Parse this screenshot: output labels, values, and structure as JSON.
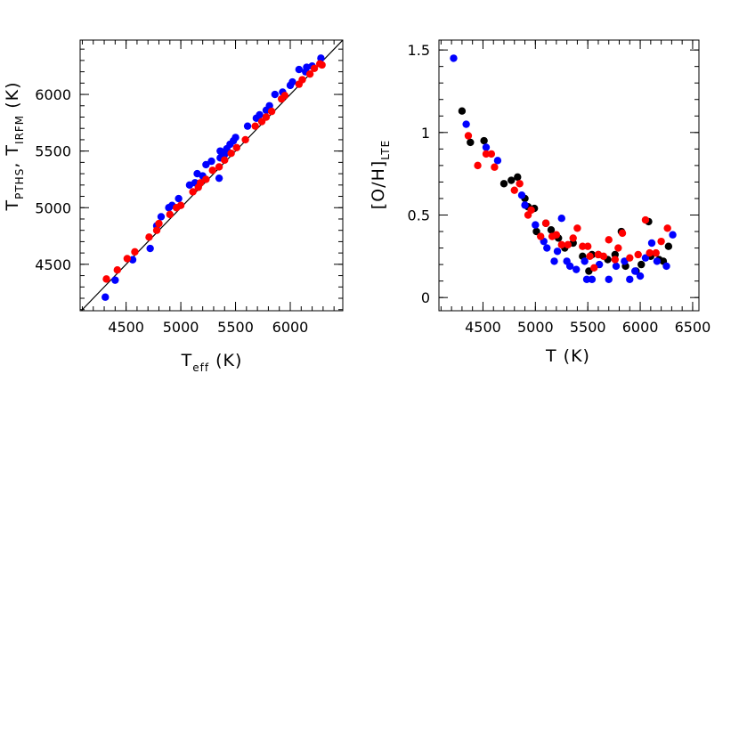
{
  "chart_data": [
    {
      "type": "scatter",
      "xlim": [
        4080,
        6480
      ],
      "ylim": [
        4090,
        6480
      ],
      "xticks": [
        4500,
        5000,
        5500,
        6000
      ],
      "yticks": [
        4500,
        5000,
        5500,
        6000
      ],
      "xtick_labels": [
        "4500",
        "5000",
        "5500",
        "6000"
      ],
      "ytick_labels": [
        "4500",
        "5000",
        "5500",
        "6000"
      ],
      "xlabel": {
        "main": "T",
        "sub": "eff",
        "unit": " (K)"
      },
      "ylabel": {
        "main1": "T",
        "sub1": "PTHS",
        "sep": ", ",
        "main2": "T",
        "sub2": "IRFM",
        "unit": "  (K)"
      },
      "grid": false,
      "reference_line": {
        "slope": 1,
        "intercept": 0,
        "color": "#000000"
      },
      "series": [
        {
          "color": "#0000ff",
          "points": [
            [
              4310,
              4210
            ],
            [
              4400,
              4360
            ],
            [
              4560,
              4540
            ],
            [
              4720,
              4640
            ],
            [
              4780,
              4840
            ],
            [
              4820,
              4920
            ],
            [
              4890,
              5000
            ],
            [
              4920,
              5020
            ],
            [
              4980,
              5080
            ],
            [
              5080,
              5200
            ],
            [
              5130,
              5220
            ],
            [
              5150,
              5300
            ],
            [
              5200,
              5280
            ],
            [
              5230,
              5380
            ],
            [
              5280,
              5410
            ],
            [
              5350,
              5260
            ],
            [
              5360,
              5440
            ],
            [
              5360,
              5500
            ],
            [
              5400,
              5470
            ],
            [
              5420,
              5520
            ],
            [
              5450,
              5560
            ],
            [
              5480,
              5590
            ],
            [
              5500,
              5620
            ],
            [
              5610,
              5720
            ],
            [
              5690,
              5790
            ],
            [
              5720,
              5820
            ],
            [
              5780,
              5860
            ],
            [
              5810,
              5900
            ],
            [
              5860,
              6000
            ],
            [
              5930,
              6020
            ],
            [
              6000,
              6080
            ],
            [
              6020,
              6110
            ],
            [
              6080,
              6220
            ],
            [
              6140,
              6200
            ],
            [
              6150,
              6240
            ],
            [
              6200,
              6250
            ],
            [
              6280,
              6320
            ]
          ]
        },
        {
          "color": "#ff0000",
          "points": [
            [
              4320,
              4370
            ],
            [
              4420,
              4450
            ],
            [
              4510,
              4550
            ],
            [
              4580,
              4610
            ],
            [
              4710,
              4740
            ],
            [
              4780,
              4800
            ],
            [
              4800,
              4860
            ],
            [
              4900,
              4940
            ],
            [
              4960,
              5000
            ],
            [
              5000,
              5020
            ],
            [
              5110,
              5140
            ],
            [
              5160,
              5180
            ],
            [
              5180,
              5220
            ],
            [
              5230,
              5250
            ],
            [
              5290,
              5330
            ],
            [
              5350,
              5360
            ],
            [
              5400,
              5420
            ],
            [
              5460,
              5480
            ],
            [
              5510,
              5530
            ],
            [
              5590,
              5600
            ],
            [
              5680,
              5720
            ],
            [
              5740,
              5760
            ],
            [
              5780,
              5800
            ],
            [
              5830,
              5850
            ],
            [
              5920,
              5960
            ],
            [
              5950,
              5990
            ],
            [
              6080,
              6090
            ],
            [
              6110,
              6130
            ],
            [
              6180,
              6180
            ],
            [
              6220,
              6230
            ],
            [
              6270,
              6270
            ],
            [
              6290,
              6260
            ]
          ]
        }
      ]
    },
    {
      "type": "scatter",
      "xlim": [
        4080,
        6560
      ],
      "ylim": [
        -0.08,
        1.56
      ],
      "xticks": [
        4500,
        5000,
        5500,
        6000,
        6500
      ],
      "yticks": [
        0,
        0.5,
        1,
        1.5
      ],
      "xtick_labels": [
        "4500",
        "5000",
        "5500",
        "6000",
        "6500"
      ],
      "ytick_labels": [
        "0",
        "0.5",
        "1",
        "1.5"
      ],
      "xlabel": {
        "main": "T (K)"
      },
      "ylabel": {
        "main": "[O/H]",
        "sub": "LTE"
      },
      "grid": false,
      "series": [
        {
          "color": "#000000",
          "points": [
            [
              4300,
              1.13
            ],
            [
              4380,
              0.94
            ],
            [
              4510,
              0.95
            ],
            [
              4700,
              0.69
            ],
            [
              4770,
              0.71
            ],
            [
              4830,
              0.73
            ],
            [
              4900,
              0.6
            ],
            [
              4930,
              0.55
            ],
            [
              4990,
              0.54
            ],
            [
              5010,
              0.4
            ],
            [
              5100,
              0.45
            ],
            [
              5150,
              0.41
            ],
            [
              5220,
              0.36
            ],
            [
              5280,
              0.3
            ],
            [
              5360,
              0.33
            ],
            [
              5450,
              0.25
            ],
            [
              5510,
              0.16
            ],
            [
              5540,
              0.26
            ],
            [
              5600,
              0.26
            ],
            [
              5690,
              0.23
            ],
            [
              5760,
              0.26
            ],
            [
              5820,
              0.4
            ],
            [
              5860,
              0.19
            ],
            [
              5960,
              0.16
            ],
            [
              6010,
              0.2
            ],
            [
              6080,
              0.46
            ],
            [
              6100,
              0.25
            ],
            [
              6180,
              0.23
            ],
            [
              6220,
              0.22
            ],
            [
              6270,
              0.31
            ]
          ]
        },
        {
          "color": "#0000ff",
          "points": [
            [
              4220,
              1.45
            ],
            [
              4340,
              1.05
            ],
            [
              4530,
              0.91
            ],
            [
              4640,
              0.83
            ],
            [
              4870,
              0.62
            ],
            [
              4900,
              0.56
            ],
            [
              5000,
              0.44
            ],
            [
              5080,
              0.34
            ],
            [
              5110,
              0.3
            ],
            [
              5180,
              0.22
            ],
            [
              5210,
              0.28
            ],
            [
              5250,
              0.48
            ],
            [
              5300,
              0.22
            ],
            [
              5330,
              0.19
            ],
            [
              5390,
              0.17
            ],
            [
              5470,
              0.22
            ],
            [
              5490,
              0.11
            ],
            [
              5540,
              0.11
            ],
            [
              5610,
              0.2
            ],
            [
              5700,
              0.11
            ],
            [
              5770,
              0.19
            ],
            [
              5850,
              0.22
            ],
            [
              5900,
              0.11
            ],
            [
              5950,
              0.16
            ],
            [
              6000,
              0.13
            ],
            [
              6050,
              0.24
            ],
            [
              6110,
              0.33
            ],
            [
              6160,
              0.22
            ],
            [
              6250,
              0.19
            ],
            [
              6310,
              0.38
            ]
          ]
        },
        {
          "color": "#ff0000",
          "points": [
            [
              4360,
              0.98
            ],
            [
              4450,
              0.8
            ],
            [
              4530,
              0.87
            ],
            [
              4580,
              0.87
            ],
            [
              4610,
              0.79
            ],
            [
              4800,
              0.65
            ],
            [
              4850,
              0.69
            ],
            [
              4930,
              0.5
            ],
            [
              4960,
              0.53
            ],
            [
              5050,
              0.37
            ],
            [
              5100,
              0.45
            ],
            [
              5160,
              0.37
            ],
            [
              5200,
              0.38
            ],
            [
              5250,
              0.32
            ],
            [
              5310,
              0.32
            ],
            [
              5360,
              0.36
            ],
            [
              5400,
              0.42
            ],
            [
              5450,
              0.31
            ],
            [
              5500,
              0.31
            ],
            [
              5520,
              0.25
            ],
            [
              5560,
              0.18
            ],
            [
              5600,
              0.26
            ],
            [
              5650,
              0.25
            ],
            [
              5700,
              0.35
            ],
            [
              5760,
              0.23
            ],
            [
              5790,
              0.3
            ],
            [
              5830,
              0.39
            ],
            [
              5900,
              0.24
            ],
            [
              5980,
              0.26
            ],
            [
              6050,
              0.47
            ],
            [
              6090,
              0.27
            ],
            [
              6150,
              0.27
            ],
            [
              6200,
              0.34
            ],
            [
              6260,
              0.42
            ]
          ]
        }
      ]
    }
  ]
}
